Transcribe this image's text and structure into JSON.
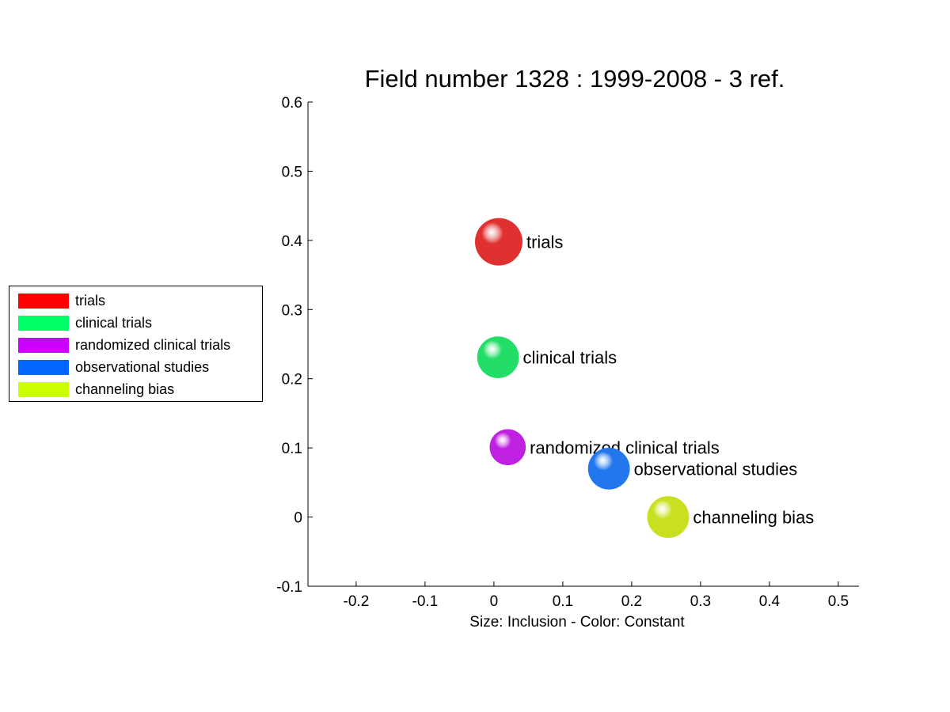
{
  "chart_data": {
    "type": "scatter",
    "title": "Field number 1328 : 1999-2008  - 3 ref.",
    "xlabel": "Size: Inclusion - Color: Constant",
    "ylabel": "",
    "xlim": [
      -0.27,
      0.53
    ],
    "ylim": [
      -0.1,
      0.6
    ],
    "xticks": [
      -0.2,
      -0.1,
      0,
      0.1,
      0.2,
      0.3,
      0.4,
      0.5
    ],
    "xtick_labels": [
      "-0.2",
      "-0.1",
      "0",
      "0.1",
      "0.2",
      "0.3",
      "0.4",
      "0.5"
    ],
    "yticks": [
      -0.1,
      0,
      0.1,
      0.2,
      0.3,
      0.4,
      0.5,
      0.6
    ],
    "ytick_labels": [
      "-0.1",
      "0",
      "0.1",
      "0.2",
      "0.3",
      "0.4",
      "0.5",
      "0.6"
    ],
    "points": [
      {
        "label": "trials",
        "x": 0.007,
        "y": 0.398,
        "size": 1.0,
        "color": "#e03030"
      },
      {
        "label": "clinical trials",
        "x": 0.006,
        "y": 0.231,
        "size": 0.88,
        "color": "#22dd66"
      },
      {
        "label": "randomized clinical trials",
        "x": 0.02,
        "y": 0.101,
        "size": 0.76,
        "color": "#c020e0"
      },
      {
        "label": "observational studies",
        "x": 0.167,
        "y": 0.07,
        "size": 0.88,
        "color": "#2277ee"
      },
      {
        "label": "channeling bias",
        "x": 0.253,
        "y": 0.0,
        "size": 0.88,
        "color": "#c8e020"
      }
    ],
    "legend": {
      "placement": "left",
      "entries": [
        {
          "label": "trials",
          "color": "#ff0000"
        },
        {
          "label": "clinical trials",
          "color": "#00ff66"
        },
        {
          "label": "randomized clinical trials",
          "color": "#cc00ff"
        },
        {
          "label": "observational studies",
          "color": "#0066ff"
        },
        {
          "label": "channeling bias",
          "color": "#ccff00"
        }
      ]
    }
  }
}
